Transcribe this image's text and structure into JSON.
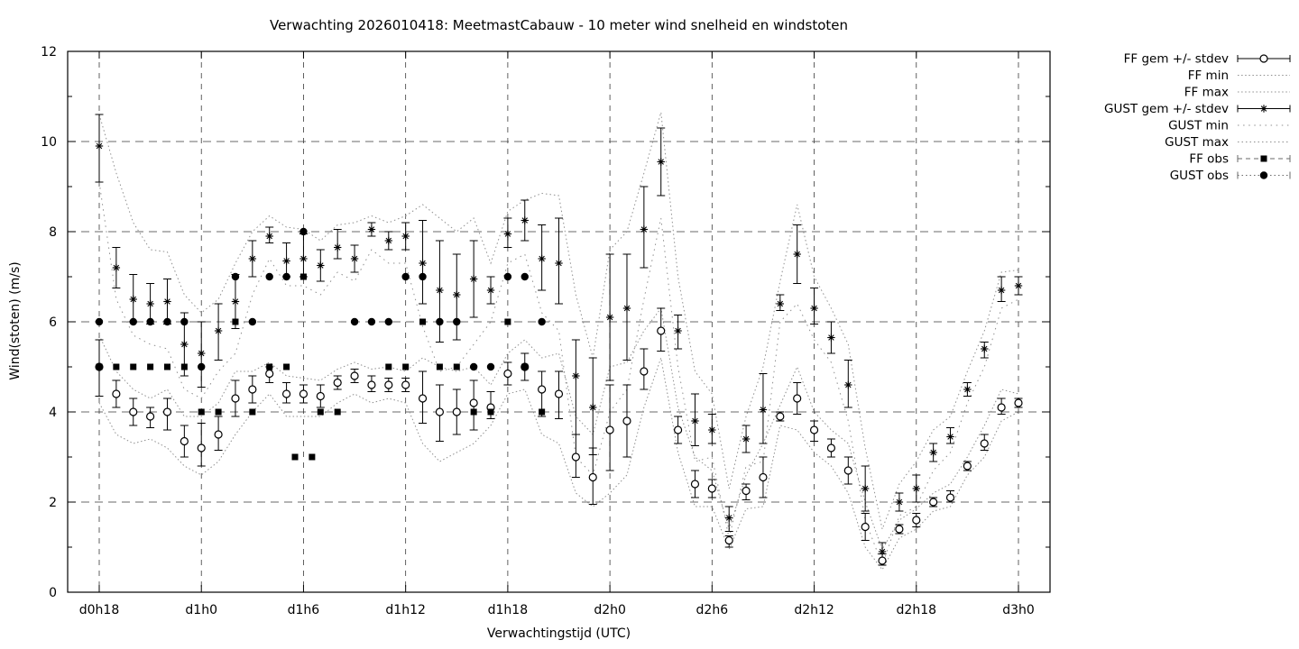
{
  "chart_data": {
    "type": "line",
    "subtype": "errorbar-forecast-plume",
    "title": "Verwachting 2026010418: MeetmastCabauw - 10 meter wind snelheid en windstoten",
    "xlabel": "Verwachtingstijd (UTC)",
    "ylabel": "Wind(stoten) (m/s)",
    "ylim": [
      0,
      12
    ],
    "y_ticks": [
      0,
      2,
      4,
      6,
      8,
      10,
      12
    ],
    "grid": "dashed major grid",
    "legend_position": "outside top-right",
    "x_tick_labels": [
      "d0h18",
      "d1h0",
      "d1h6",
      "d1h12",
      "d1h18",
      "d2h0",
      "d2h6",
      "d2h12",
      "d2h18",
      "d3h0"
    ],
    "x_tick_hours": [
      0,
      6,
      12,
      18,
      24,
      30,
      36,
      42,
      48,
      54
    ],
    "hours_step": 1,
    "series": [
      {
        "name": "FF gem +/- stdev",
        "marker": "open-circle",
        "style": "errorbar",
        "values": [
          5.0,
          4.4,
          4.0,
          3.9,
          4.0,
          3.35,
          3.2,
          3.5,
          4.3,
          4.5,
          4.85,
          4.4,
          4.4,
          4.35,
          4.65,
          4.8,
          4.6,
          4.6,
          4.6,
          4.3,
          4.0,
          4.0,
          4.2,
          4.1,
          4.85,
          5.0,
          4.5,
          4.4,
          3.0,
          2.55,
          3.6,
          3.8,
          4.9,
          5.8,
          3.6,
          2.4,
          2.3,
          1.15,
          2.25,
          2.55,
          3.9,
          4.3,
          3.6,
          3.2,
          2.7,
          1.45,
          0.7,
          1.4,
          1.6,
          2.0,
          2.1,
          2.8,
          3.3,
          4.1,
          4.2
        ],
        "lo": [
          4.35,
          4.1,
          3.7,
          3.65,
          3.6,
          3.0,
          2.8,
          3.15,
          3.9,
          4.2,
          4.65,
          4.2,
          4.2,
          4.1,
          4.5,
          4.65,
          4.45,
          4.45,
          4.45,
          3.75,
          3.35,
          3.5,
          3.6,
          3.85,
          4.6,
          4.7,
          3.9,
          3.85,
          2.55,
          1.95,
          2.7,
          3.0,
          4.5,
          5.35,
          3.3,
          2.1,
          2.1,
          1.0,
          2.05,
          2.1,
          3.8,
          3.95,
          3.35,
          3.0,
          2.4,
          1.15,
          0.6,
          1.3,
          1.45,
          1.9,
          2.0,
          2.7,
          3.15,
          3.95,
          4.1
        ],
        "hi": [
          5.6,
          4.7,
          4.3,
          4.1,
          4.3,
          3.7,
          3.75,
          3.9,
          4.7,
          4.8,
          5.0,
          4.65,
          4.6,
          4.6,
          4.8,
          4.95,
          4.8,
          4.75,
          4.75,
          4.9,
          4.6,
          4.5,
          4.7,
          4.45,
          5.1,
          5.3,
          4.9,
          4.9,
          3.5,
          3.2,
          4.6,
          4.6,
          5.4,
          6.3,
          3.9,
          2.7,
          2.5,
          1.25,
          2.4,
          3.0,
          4.0,
          4.65,
          3.8,
          3.4,
          3.0,
          1.75,
          0.85,
          1.5,
          1.75,
          2.1,
          2.25,
          2.9,
          3.5,
          4.3,
          4.3
        ]
      },
      {
        "name": "FF min",
        "style": "dotted",
        "values": [
          4.2,
          3.5,
          3.3,
          3.4,
          3.2,
          2.8,
          2.6,
          2.9,
          3.5,
          4.0,
          4.4,
          3.9,
          3.9,
          3.9,
          4.2,
          4.4,
          4.2,
          4.3,
          4.2,
          3.3,
          2.9,
          3.1,
          3.3,
          3.7,
          4.4,
          4.5,
          3.5,
          3.3,
          2.2,
          1.9,
          2.2,
          2.6,
          4.1,
          5.2,
          3.1,
          1.9,
          1.9,
          0.95,
          1.85,
          1.9,
          3.7,
          3.6,
          3.1,
          2.8,
          2.2,
          1.0,
          0.5,
          1.2,
          1.4,
          1.8,
          1.9,
          2.6,
          3.0,
          3.8,
          4.0
        ]
      },
      {
        "name": "FF max",
        "style": "dotted",
        "values": [
          5.7,
          4.9,
          4.5,
          4.3,
          4.5,
          3.9,
          3.9,
          4.2,
          4.9,
          4.9,
          5.1,
          4.8,
          4.75,
          4.7,
          4.95,
          5.1,
          4.95,
          5.0,
          4.9,
          5.2,
          5.0,
          4.9,
          5.0,
          4.6,
          5.3,
          5.6,
          5.2,
          5.3,
          3.9,
          3.5,
          5.0,
          5.1,
          5.8,
          6.3,
          4.1,
          3.0,
          2.7,
          1.4,
          2.6,
          3.3,
          4.15,
          5.0,
          4.0,
          3.6,
          3.3,
          2.0,
          0.95,
          1.6,
          1.85,
          2.2,
          2.4,
          3.0,
          3.7,
          4.5,
          4.4
        ]
      },
      {
        "name": "GUST gem +/- stdev",
        "marker": "asterisk",
        "style": "errorbar",
        "values": [
          9.9,
          7.2,
          6.5,
          6.4,
          6.45,
          5.5,
          5.3,
          5.8,
          6.45,
          7.4,
          7.9,
          7.35,
          7.4,
          7.25,
          7.65,
          7.4,
          8.05,
          7.8,
          7.9,
          7.3,
          6.7,
          6.6,
          6.95,
          6.7,
          7.95,
          8.25,
          7.4,
          7.3,
          4.8,
          4.1,
          6.1,
          6.3,
          8.05,
          9.55,
          5.8,
          3.8,
          3.6,
          1.65,
          3.4,
          4.05,
          6.4,
          7.5,
          6.3,
          5.65,
          4.6,
          2.3,
          0.9,
          2.0,
          2.3,
          3.1,
          3.45,
          4.5,
          5.4,
          6.7,
          6.8
        ],
        "lo": [
          9.1,
          6.75,
          6.0,
          5.95,
          5.95,
          4.8,
          4.55,
          5.15,
          5.85,
          7.0,
          7.75,
          7.0,
          7.0,
          6.9,
          7.4,
          7.1,
          7.9,
          7.6,
          7.6,
          6.4,
          5.55,
          5.6,
          6.1,
          6.4,
          7.65,
          7.8,
          6.7,
          6.4,
          3.5,
          3.05,
          4.7,
          5.15,
          7.2,
          8.8,
          5.4,
          3.25,
          3.3,
          1.35,
          3.1,
          3.3,
          6.25,
          6.85,
          5.95,
          5.3,
          4.1,
          1.8,
          0.7,
          1.8,
          2.0,
          2.9,
          3.3,
          4.35,
          5.2,
          6.45,
          6.6
        ],
        "hi": [
          10.6,
          7.65,
          7.05,
          6.85,
          6.95,
          6.2,
          6.0,
          6.4,
          7.05,
          7.8,
          8.1,
          7.75,
          7.95,
          7.6,
          8.05,
          7.7,
          8.2,
          8.0,
          8.2,
          8.25,
          7.8,
          7.5,
          7.8,
          7.0,
          8.3,
          8.7,
          8.15,
          8.3,
          5.6,
          5.2,
          7.5,
          7.5,
          9.0,
          10.3,
          6.15,
          4.4,
          3.95,
          1.9,
          3.7,
          4.85,
          6.6,
          8.15,
          6.75,
          6.0,
          5.15,
          2.8,
          1.1,
          2.2,
          2.6,
          3.3,
          3.65,
          4.65,
          5.55,
          7.0,
          7.0
        ]
      },
      {
        "name": "GUST min",
        "style": "sparse-dotted",
        "values": [
          9.1,
          6.5,
          5.7,
          5.5,
          5.4,
          4.5,
          4.3,
          4.9,
          5.3,
          6.6,
          7.4,
          6.8,
          6.8,
          6.6,
          7.1,
          6.9,
          7.6,
          7.3,
          7.3,
          5.9,
          4.9,
          5.0,
          5.5,
          6.0,
          7.3,
          7.5,
          6.2,
          5.8,
          3.0,
          2.6,
          4.0,
          4.5,
          6.5,
          8.3,
          5.0,
          2.9,
          3.0,
          1.2,
          2.8,
          2.9,
          6.0,
          6.4,
          5.6,
          5.1,
          3.8,
          1.6,
          0.6,
          1.7,
          1.9,
          2.7,
          3.1,
          4.2,
          5.0,
          6.3,
          6.5
        ]
      },
      {
        "name": "GUST max",
        "style": "dotted",
        "values": [
          10.6,
          9.3,
          8.2,
          7.6,
          7.55,
          6.6,
          6.2,
          6.5,
          7.3,
          8.0,
          8.35,
          8.1,
          8.05,
          7.8,
          8.15,
          8.2,
          8.35,
          8.2,
          8.35,
          8.6,
          8.3,
          8.0,
          8.3,
          7.3,
          8.45,
          8.7,
          8.85,
          8.8,
          6.6,
          5.2,
          7.6,
          8.0,
          9.3,
          10.65,
          7.0,
          4.9,
          4.4,
          2.3,
          3.9,
          5.0,
          6.9,
          8.6,
          7.0,
          6.3,
          5.5,
          3.2,
          1.4,
          2.4,
          2.9,
          3.6,
          3.9,
          4.9,
          5.8,
          7.1,
          7.15
        ]
      },
      {
        "name": "FF obs",
        "marker": "filled-square",
        "style": "points",
        "points": [
          [
            0,
            5
          ],
          [
            1,
            5
          ],
          [
            2,
            5
          ],
          [
            3,
            5
          ],
          [
            4,
            5
          ],
          [
            5,
            5
          ],
          [
            6,
            4
          ],
          [
            7,
            4
          ],
          [
            8,
            6
          ],
          [
            9,
            4
          ],
          [
            10,
            5
          ],
          [
            11,
            5
          ],
          [
            11.5,
            3
          ],
          [
            12,
            7
          ],
          [
            12.5,
            3
          ],
          [
            13,
            4
          ],
          [
            14,
            4
          ],
          [
            17,
            5
          ],
          [
            18,
            5
          ],
          [
            19,
            6
          ],
          [
            20,
            5
          ],
          [
            21,
            5
          ],
          [
            22,
            4
          ],
          [
            23,
            4
          ],
          [
            24,
            6
          ],
          [
            25,
            5
          ],
          [
            26,
            4
          ]
        ]
      },
      {
        "name": "GUST obs",
        "marker": "filled-circle",
        "style": "points",
        "points": [
          [
            0,
            6
          ],
          [
            2,
            6
          ],
          [
            3,
            6
          ],
          [
            4,
            6
          ],
          [
            5,
            6
          ],
          [
            6,
            5
          ],
          [
            8,
            7
          ],
          [
            9,
            6
          ],
          [
            10,
            7
          ],
          [
            11,
            7
          ],
          [
            12,
            8
          ],
          [
            15,
            6
          ],
          [
            16,
            6
          ],
          [
            17,
            6
          ],
          [
            18,
            7
          ],
          [
            19,
            7
          ],
          [
            20,
            6
          ],
          [
            21,
            6
          ],
          [
            22,
            5
          ],
          [
            23,
            5
          ],
          [
            24,
            7
          ],
          [
            25,
            7
          ],
          [
            26,
            6
          ]
        ]
      }
    ],
    "colors": {
      "foreground": "#000000",
      "envelope_gray": "#8f8f8f",
      "grid_gray": "#3a3a3a"
    }
  }
}
